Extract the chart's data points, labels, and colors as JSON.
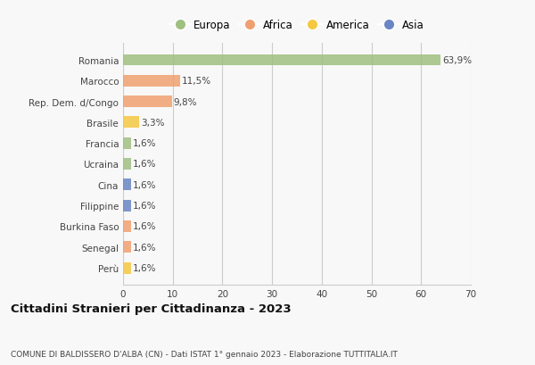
{
  "categories": [
    "Perù",
    "Senegal",
    "Burkina Faso",
    "Filippine",
    "Cina",
    "Ucraina",
    "Francia",
    "Brasile",
    "Rep. Dem. d/Congo",
    "Marocco",
    "Romania"
  ],
  "values": [
    1.6,
    1.6,
    1.6,
    1.6,
    1.6,
    1.6,
    1.6,
    3.3,
    9.8,
    11.5,
    63.9
  ],
  "colors": [
    "#f5c842",
    "#f0a070",
    "#f0a070",
    "#6a85c4",
    "#6a85c4",
    "#a0c080",
    "#a0c080",
    "#f5c842",
    "#f0a070",
    "#f0a070",
    "#a0c080"
  ],
  "labels": [
    "1,6%",
    "1,6%",
    "1,6%",
    "1,6%",
    "1,6%",
    "1,6%",
    "1,6%",
    "3,3%",
    "9,8%",
    "11,5%",
    "63,9%"
  ],
  "legend_labels": [
    "Europa",
    "Africa",
    "America",
    "Asia"
  ],
  "legend_colors": [
    "#a0c080",
    "#f0a070",
    "#f5c842",
    "#6a85c4"
  ],
  "title": "Cittadini Stranieri per Cittadinanza - 2023",
  "subtitle": "COMUNE DI BALDISSERO D'ALBA (CN) - Dati ISTAT 1° gennaio 2023 - Elaborazione TUTTITALIA.IT",
  "xlim": [
    0,
    70
  ],
  "xticks": [
    0,
    10,
    20,
    30,
    40,
    50,
    60,
    70
  ],
  "bg_color": "#f8f8f8",
  "plot_bg_color": "#f8f8f8",
  "grid_color": "#cccccc",
  "bar_height": 0.55
}
